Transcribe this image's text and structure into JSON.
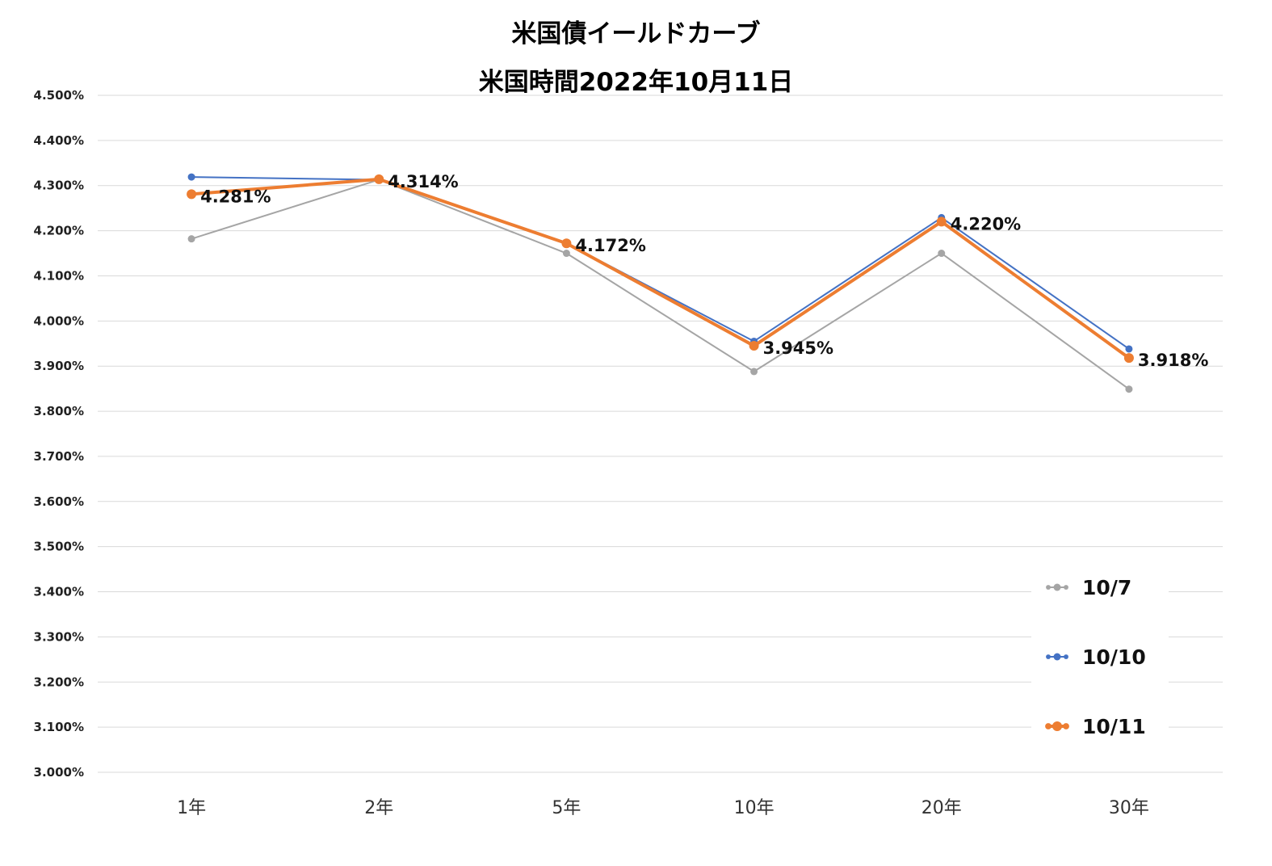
{
  "chart_data": {
    "type": "line",
    "title": "米国債イールドカーブ",
    "subtitle": "米国時間2022年10月11日",
    "categories": [
      "1年",
      "2年",
      "5年",
      "10年",
      "20年",
      "30年"
    ],
    "ylim": [
      3.0,
      4.5
    ],
    "yticks": [
      "3.000%",
      "3.100%",
      "3.200%",
      "3.300%",
      "3.400%",
      "3.500%",
      "3.600%",
      "3.700%",
      "3.800%",
      "3.900%",
      "4.000%",
      "4.100%",
      "4.200%",
      "4.300%",
      "4.400%",
      "4.500%"
    ],
    "grid": true,
    "legend_position": "bottom-right",
    "series": [
      {
        "name": "10/7",
        "color": "#a5a5a5",
        "values": [
          4.182,
          4.313,
          4.15,
          3.888,
          4.15,
          3.849
        ]
      },
      {
        "name": "10/10",
        "color": "#4472c4",
        "values": [
          4.319,
          4.313,
          4.172,
          3.955,
          4.229,
          3.938
        ]
      },
      {
        "name": "10/11",
        "color": "#ed7d31",
        "values": [
          4.281,
          4.314,
          4.172,
          3.945,
          4.22,
          3.918
        ],
        "data_labels": [
          "4.281%",
          "4.314%",
          "4.172%",
          "3.945%",
          "4.220%",
          "3.918%"
        ]
      }
    ]
  }
}
